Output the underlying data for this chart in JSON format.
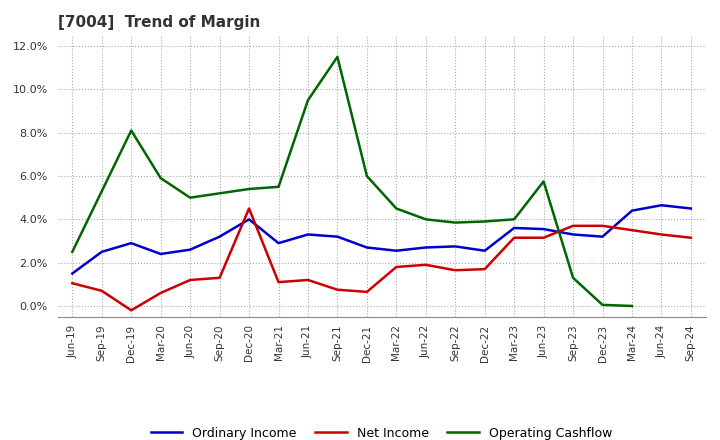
{
  "title": "[7004]  Trend of Margin",
  "x_labels": [
    "Jun-19",
    "Sep-19",
    "Dec-19",
    "Mar-20",
    "Jun-20",
    "Sep-20",
    "Dec-20",
    "Mar-21",
    "Jun-21",
    "Sep-21",
    "Dec-21",
    "Mar-22",
    "Jun-22",
    "Sep-22",
    "Dec-22",
    "Mar-23",
    "Jun-23",
    "Sep-23",
    "Dec-23",
    "Mar-24",
    "Jun-24",
    "Sep-24"
  ],
  "ordinary_income": [
    1.5,
    2.5,
    2.9,
    2.4,
    2.6,
    3.2,
    4.0,
    2.9,
    3.3,
    3.2,
    2.7,
    2.55,
    2.7,
    2.75,
    2.55,
    3.6,
    3.55,
    3.3,
    3.2,
    4.4,
    4.65,
    4.5
  ],
  "net_income": [
    1.05,
    0.7,
    -0.2,
    0.6,
    1.2,
    1.3,
    4.5,
    1.1,
    1.2,
    0.75,
    0.65,
    1.8,
    1.9,
    1.65,
    1.7,
    3.15,
    3.15,
    3.7,
    3.7,
    3.5,
    3.3,
    3.15
  ],
  "operating_cashflow": [
    2.5,
    5.3,
    8.1,
    5.9,
    5.0,
    5.2,
    5.4,
    5.5,
    9.5,
    11.5,
    6.0,
    4.5,
    4.0,
    3.85,
    3.9,
    4.0,
    5.75,
    1.3,
    0.05,
    0.0,
    null,
    null
  ],
  "ylim": [
    -0.5,
    12.5
  ],
  "yticks": [
    0.0,
    2.0,
    4.0,
    6.0,
    8.0,
    10.0,
    12.0
  ],
  "line_colors": {
    "ordinary_income": "#0000cc",
    "net_income": "#cc0000",
    "operating_cashflow": "#006600"
  },
  "background_color": "#ffffff",
  "title_color": "#333333",
  "grid_color": "#bbbbbb"
}
